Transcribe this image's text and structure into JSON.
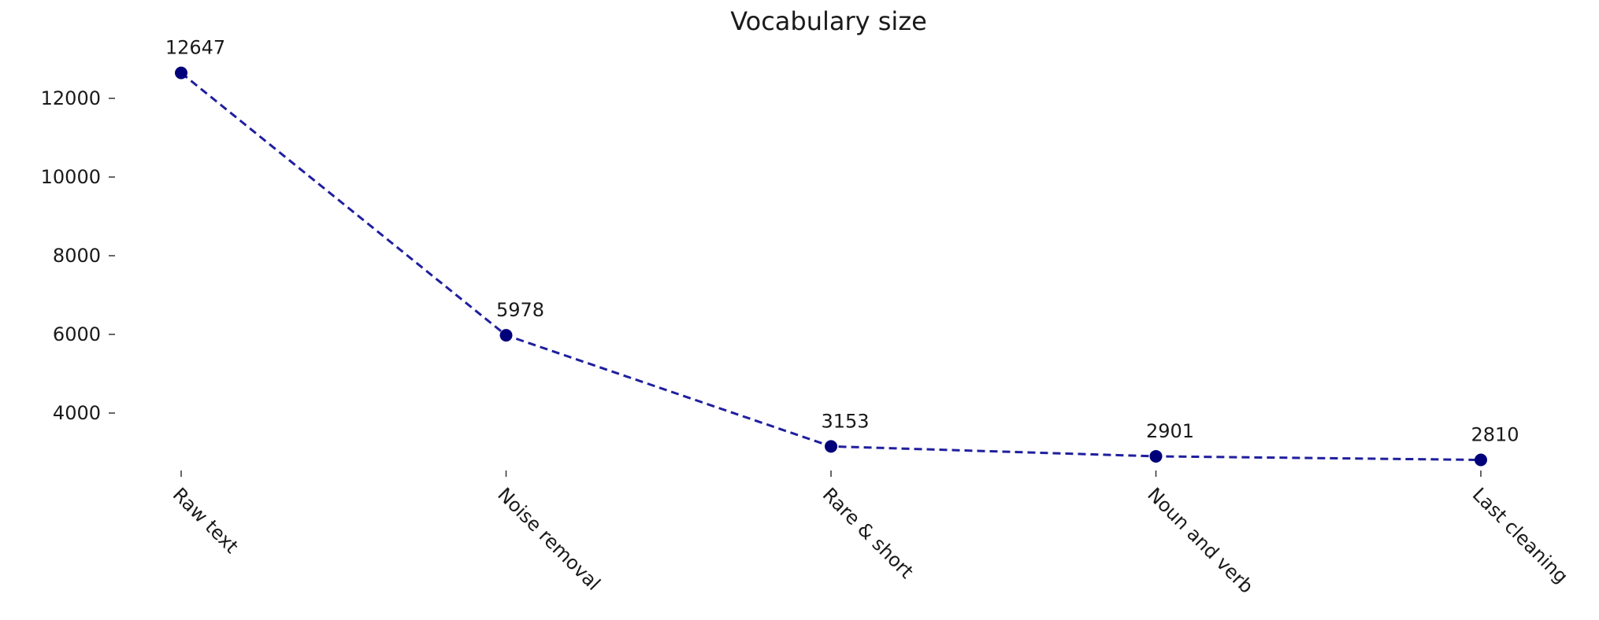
{
  "chart_data": {
    "type": "line",
    "title": "Vocabulary size",
    "xlabel": "",
    "ylabel": "",
    "categories": [
      "Raw text",
      "Noise removal",
      "Rare & short",
      "Noun and verb",
      "Last cleaning"
    ],
    "series": [
      {
        "values": [
          12647,
          5978,
          3153,
          2901,
          2810
        ],
        "color": "#1f1f9e",
        "marker_color": "#00007a",
        "line_style": "dashed"
      }
    ],
    "y_ticks": [
      4000,
      6000,
      8000,
      10000,
      12000
    ],
    "ylim": [
      2300,
      13300
    ],
    "grid": false,
    "show_data_labels": true,
    "x_tick_rotation": "-45",
    "spines_visible": false
  }
}
